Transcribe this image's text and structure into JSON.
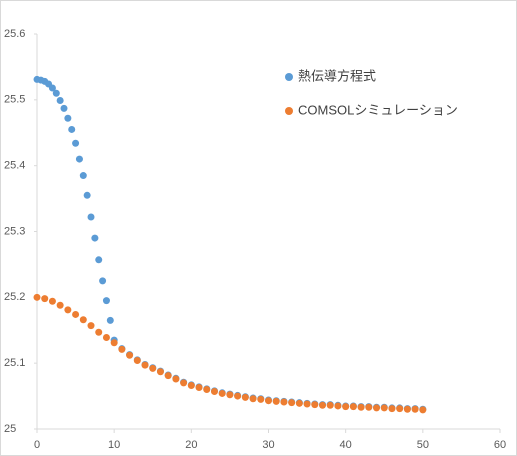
{
  "chart_data": {
    "type": "scatter",
    "xlim": [
      0,
      60
    ],
    "xticks": [
      0,
      10,
      20,
      30,
      40,
      50,
      60
    ],
    "ylim": [
      25,
      25.6
    ],
    "yticks": [
      25,
      25.1,
      25.2,
      25.3,
      25.4,
      25.5,
      25.6
    ],
    "legend": "top-right",
    "series": [
      {
        "name": "熱伝導方程式",
        "color": "#5b9bd5",
        "x": [
          0,
          0.5,
          1,
          1.5,
          2,
          2.5,
          3,
          3.5,
          4,
          4.5,
          5,
          5.5,
          6,
          6.5,
          7,
          7.5,
          8,
          8.5,
          9,
          9.5,
          10,
          11,
          12,
          13,
          14,
          15,
          16,
          17,
          18,
          19,
          20,
          21,
          22,
          23,
          24,
          25,
          26,
          27,
          28,
          29,
          30,
          31,
          32,
          33,
          34,
          35,
          36,
          37,
          38,
          39,
          40,
          41,
          42,
          43,
          44,
          45,
          46,
          47,
          48,
          49,
          50
        ],
        "values": [
          25.531,
          25.53,
          25.528,
          25.524,
          25.518,
          25.51,
          25.499,
          25.487,
          25.472,
          25.455,
          25.434,
          25.41,
          25.385,
          25.355,
          25.322,
          25.29,
          25.257,
          25.225,
          25.195,
          25.165,
          25.135,
          25.122,
          25.113,
          25.105,
          25.098,
          25.093,
          25.088,
          25.082,
          25.077,
          25.071,
          25.067,
          25.064,
          25.061,
          25.058,
          25.055,
          25.053,
          25.051,
          25.049,
          25.047,
          25.046,
          25.044,
          25.043,
          25.042,
          25.041,
          25.04,
          25.039,
          25.038,
          25.037,
          25.037,
          25.036,
          25.035,
          25.035,
          25.034,
          25.034,
          25.033,
          25.033,
          25.032,
          25.032,
          25.031,
          25.031,
          25.03
        ]
      },
      {
        "name": "COMSOLシミュレーション",
        "color": "#ed7d31",
        "x": [
          0,
          1,
          2,
          3,
          4,
          5,
          6,
          7,
          8,
          9,
          10,
          11,
          12,
          13,
          14,
          15,
          16,
          17,
          18,
          19,
          20,
          21,
          22,
          23,
          24,
          25,
          26,
          27,
          28,
          29,
          30,
          31,
          32,
          33,
          34,
          35,
          36,
          37,
          38,
          39,
          40,
          41,
          42,
          43,
          44,
          45,
          46,
          47,
          48,
          49,
          50
        ],
        "values": [
          25.2,
          25.198,
          25.194,
          25.188,
          25.181,
          25.174,
          25.166,
          25.157,
          25.147,
          25.139,
          25.131,
          25.121,
          25.112,
          25.104,
          25.097,
          25.092,
          25.087,
          25.081,
          25.076,
          25.07,
          25.066,
          25.063,
          25.06,
          25.057,
          25.054,
          25.052,
          25.05,
          25.048,
          25.046,
          25.045,
          25.043,
          25.042,
          25.041,
          25.04,
          25.039,
          25.038,
          25.037,
          25.036,
          25.036,
          25.035,
          25.034,
          25.034,
          25.033,
          25.033,
          25.032,
          25.032,
          25.031,
          25.031,
          25.03,
          25.03,
          25.029
        ]
      }
    ]
  }
}
